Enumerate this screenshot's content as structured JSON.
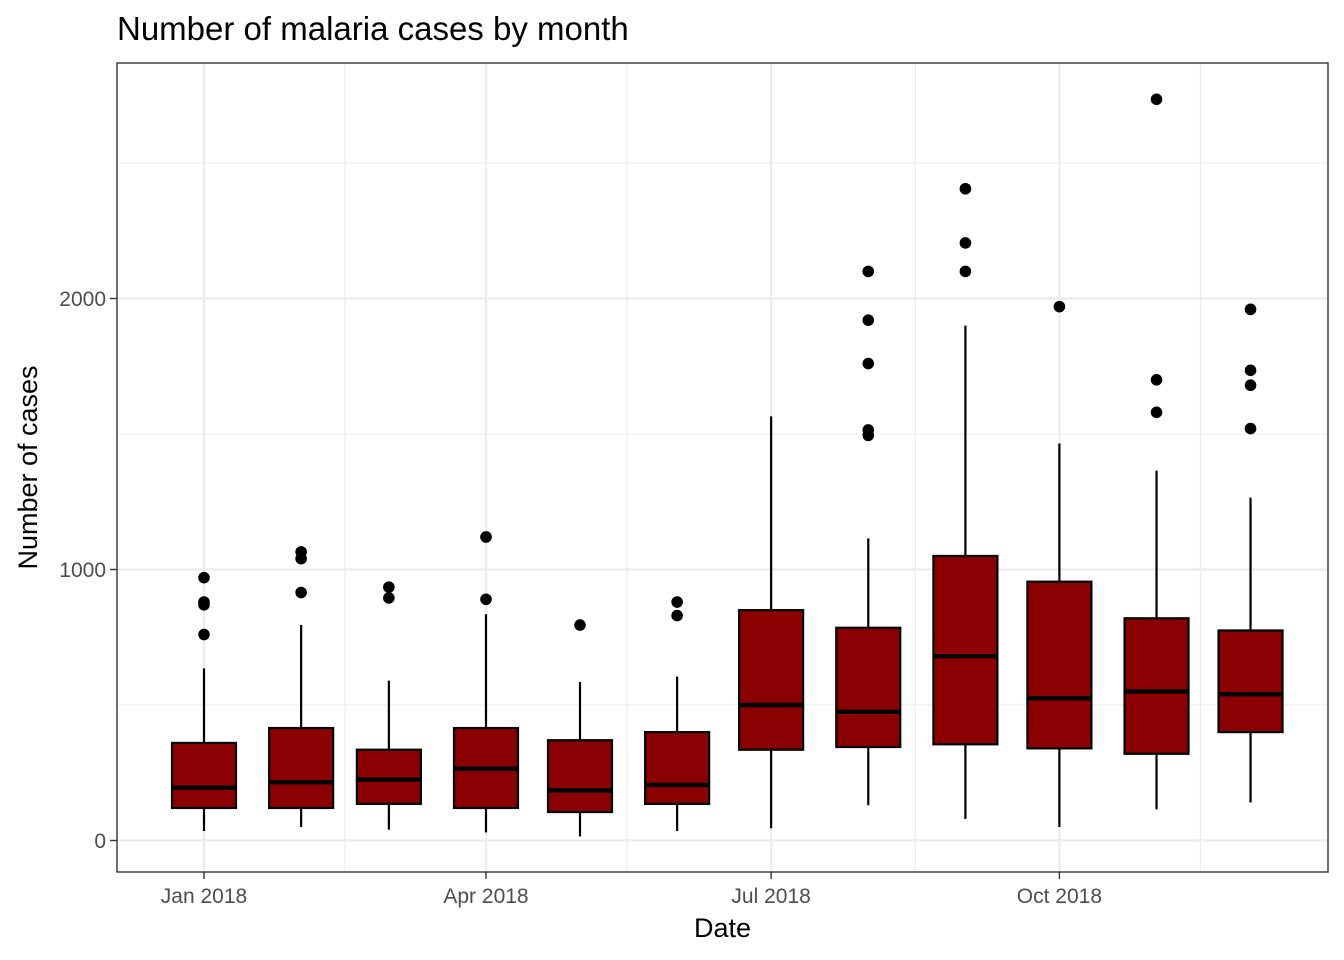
{
  "chart_data": {
    "type": "box",
    "title": "Number of malaria cases by month",
    "xlabel": "Date",
    "ylabel": "Number of cases",
    "x_ticks": [
      "Jan 2018",
      "Apr 2018",
      "Jul 2018",
      "Oct 2018"
    ],
    "y_ticks": [
      0,
      1000,
      2000
    ],
    "ylim": [
      -120,
      2860
    ],
    "grid": true,
    "box_fill": "#8b0000",
    "series": [
      {
        "month": "2018-01",
        "low": 35,
        "q1": 120,
        "median": 195,
        "q3": 360,
        "high": 635,
        "outliers": [
          760,
          870,
          880,
          970
        ]
      },
      {
        "month": "2018-02",
        "low": 50,
        "q1": 120,
        "median": 215,
        "q3": 415,
        "high": 795,
        "outliers": [
          915,
          1040,
          1065
        ]
      },
      {
        "month": "2018-03",
        "low": 40,
        "q1": 135,
        "median": 225,
        "q3": 335,
        "high": 590,
        "outliers": [
          895,
          935
        ]
      },
      {
        "month": "2018-04",
        "low": 30,
        "q1": 120,
        "median": 265,
        "q3": 415,
        "high": 835,
        "outliers": [
          890,
          1120
        ]
      },
      {
        "month": "2018-05",
        "low": 15,
        "q1": 105,
        "median": 185,
        "q3": 370,
        "high": 585,
        "outliers": [
          795
        ]
      },
      {
        "month": "2018-06",
        "low": 35,
        "q1": 135,
        "median": 205,
        "q3": 400,
        "high": 605,
        "outliers": [
          830,
          880
        ]
      },
      {
        "month": "2018-07",
        "low": 45,
        "q1": 335,
        "median": 500,
        "q3": 850,
        "high": 1565,
        "outliers": []
      },
      {
        "month": "2018-08",
        "low": 130,
        "q1": 345,
        "median": 475,
        "q3": 785,
        "high": 1115,
        "outliers": [
          1495,
          1515,
          1760,
          1920,
          2100
        ]
      },
      {
        "month": "2018-09",
        "low": 80,
        "q1": 355,
        "median": 680,
        "q3": 1050,
        "high": 1900,
        "outliers": [
          2100,
          2205,
          2405
        ]
      },
      {
        "month": "2018-10",
        "low": 50,
        "q1": 340,
        "median": 525,
        "q3": 955,
        "high": 1465,
        "outliers": [
          1970
        ]
      },
      {
        "month": "2018-11",
        "low": 115,
        "q1": 320,
        "median": 550,
        "q3": 820,
        "high": 1365,
        "outliers": [
          1580,
          1700,
          2735
        ]
      },
      {
        "month": "2018-12",
        "low": 140,
        "q1": 400,
        "median": 540,
        "q3": 775,
        "high": 1265,
        "outliers": [
          1520,
          1680,
          1735,
          1960
        ]
      }
    ]
  }
}
